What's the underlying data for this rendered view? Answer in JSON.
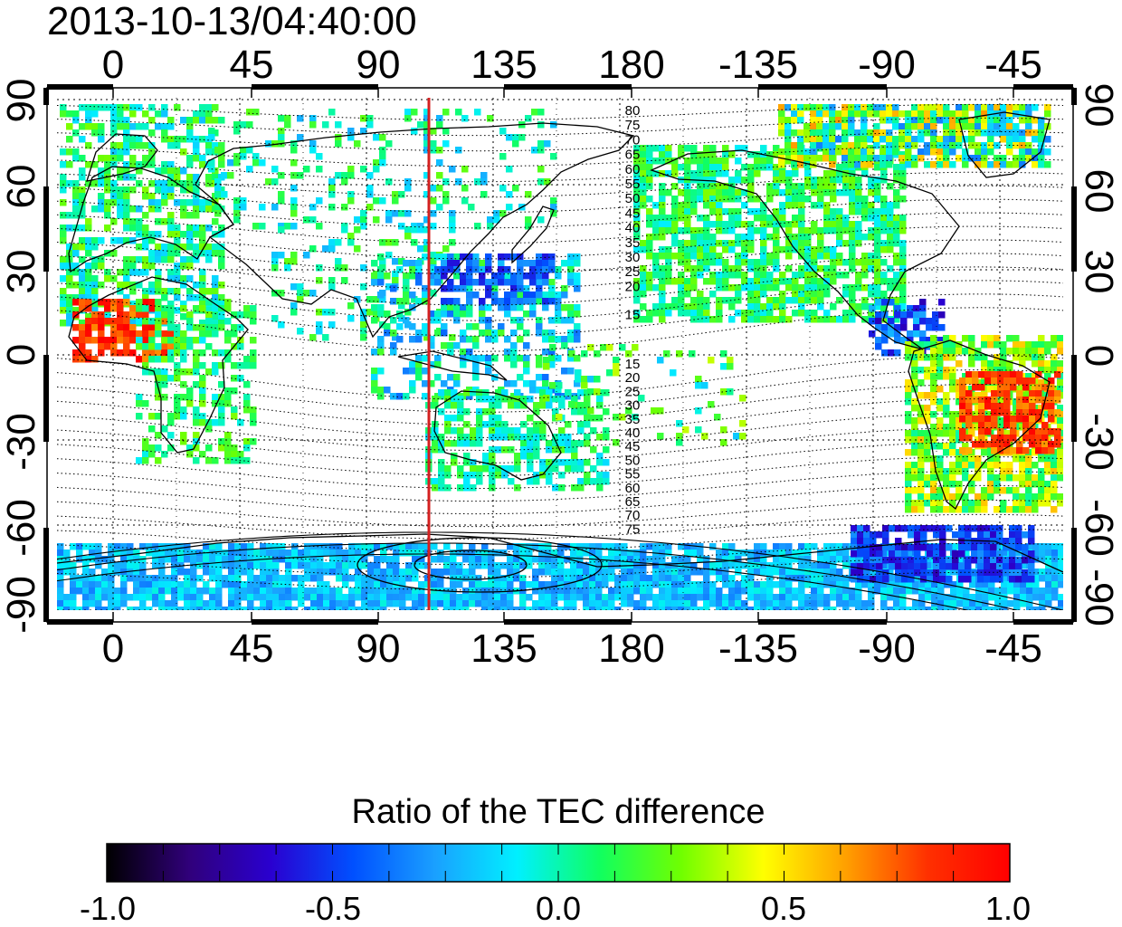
{
  "map": {
    "timestamp": "2013-10-13/04:40:00",
    "top_ticks": [
      "0",
      "45",
      "90",
      "135",
      "180",
      "-135",
      "-90",
      "-45"
    ],
    "bottom_ticks": [
      "0",
      "45",
      "90",
      "135",
      "180",
      "-135",
      "-90",
      "-45"
    ],
    "left_ticks": [
      "90",
      "60",
      "30",
      "0",
      "-30",
      "-60",
      "-90"
    ],
    "right_ticks": [
      "90",
      "60",
      "30",
      "0",
      "-30",
      "-60",
      "-90"
    ],
    "contour_labels_north": [
      "80",
      "75",
      "70",
      "65",
      "60",
      "55",
      "50",
      "45",
      "40",
      "35",
      "30",
      "25",
      "20",
      "15"
    ],
    "contour_labels_south": [
      "15",
      "20",
      "25",
      "30",
      "35",
      "40",
      "45",
      "50",
      "55",
      "60",
      "65",
      "70",
      "75"
    ],
    "reference_meridian_color": "#d42020",
    "colors": {
      "positive": "#ff1a00",
      "neutral": "#2ef07a",
      "negative": "#1f5cff"
    }
  },
  "colorbar": {
    "title": "Ratio of the TEC difference",
    "tick_labels": [
      "-1.0",
      "-0.5",
      "0.0",
      "0.5",
      "1.0"
    ],
    "range": [
      -1.0,
      1.0
    ],
    "gradient_stops": [
      "#000000",
      "#30007a",
      "#2a00d0",
      "#0050ff",
      "#1aa0ff",
      "#00f0ff",
      "#10ff60",
      "#70ff00",
      "#ffff00",
      "#ffa000",
      "#ff3000",
      "#ff0000"
    ]
  }
}
